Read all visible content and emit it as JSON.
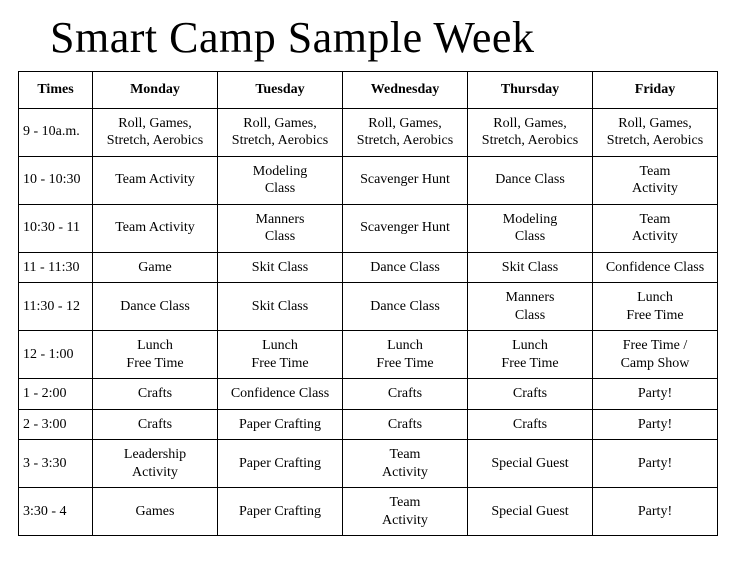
{
  "title": "Smart Camp Sample Week",
  "table": {
    "columns": [
      "Times",
      "Monday",
      "Tuesday",
      "Wednesday",
      "Thursday",
      "Friday"
    ],
    "rows": [
      {
        "time": "9 - 10a.m.",
        "cells": [
          "Roll, Games, Stretch, Aerobics",
          "Roll, Games, Stretch, Aerobics",
          "Roll, Games, Stretch, Aerobics",
          "Roll, Games, Stretch, Aerobics",
          "Roll, Games, Stretch, Aerobics"
        ]
      },
      {
        "time": "10 - 10:30",
        "cells": [
          "Team Activity",
          "Modeling\nClass",
          "Scavenger Hunt",
          "Dance Class",
          "Team\nActivity"
        ]
      },
      {
        "time": "10:30 - 11",
        "cells": [
          "Team Activity",
          "Manners\nClass",
          "Scavenger Hunt",
          "Modeling\nClass",
          "Team\nActivity"
        ]
      },
      {
        "time": "11 - 11:30",
        "cells": [
          "Game",
          "Skit Class",
          "Dance Class",
          "Skit Class",
          "Confidence Class"
        ]
      },
      {
        "time": "11:30 - 12",
        "cells": [
          "Dance Class",
          "Skit Class",
          "Dance Class",
          "Manners\nClass",
          "Lunch\nFree Time"
        ]
      },
      {
        "time": "12 - 1:00",
        "cells": [
          "Lunch\nFree Time",
          "Lunch\nFree Time",
          "Lunch\nFree Time",
          "Lunch\nFree Time",
          "Free Time /\nCamp Show"
        ]
      },
      {
        "time": "1 - 2:00",
        "cells": [
          "Crafts",
          "Confidence Class",
          "Crafts",
          "Crafts",
          "Party!"
        ]
      },
      {
        "time": "2 - 3:00",
        "cells": [
          "Crafts",
          "Paper Crafting",
          "Crafts",
          "Crafts",
          "Party!"
        ]
      },
      {
        "time": "3 - 3:30",
        "cells": [
          "Leadership\nActivity",
          "Paper Crafting",
          "Team\nActivity",
          "Special Guest",
          "Party!"
        ]
      },
      {
        "time": "3:30 - 4",
        "cells": [
          "Games",
          "Paper Crafting",
          "Team\nActivity",
          "Special Guest",
          "Party!"
        ]
      }
    ]
  },
  "style": {
    "background_color": "#ffffff",
    "text_color": "#000000",
    "border_color": "#000000",
    "title_fontsize": 44,
    "header_fontsize": 14,
    "cell_fontsize": 14,
    "time_fontsize": 13,
    "font_family": "Times New Roman"
  }
}
